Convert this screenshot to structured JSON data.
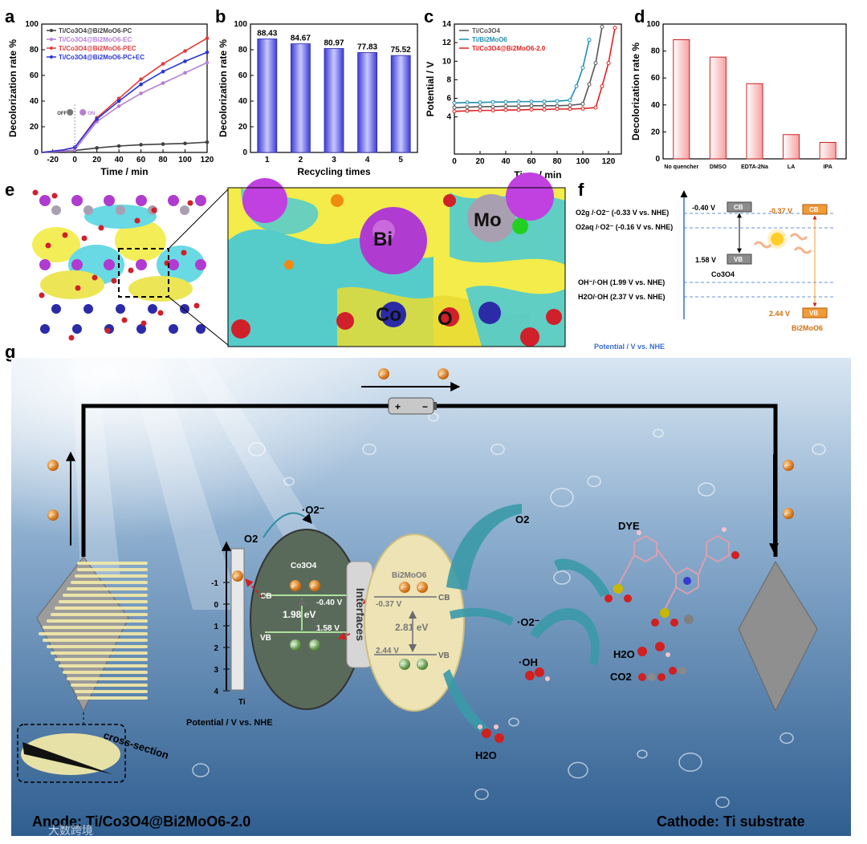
{
  "panels": {
    "a": "a",
    "b": "b",
    "c": "c",
    "d": "d",
    "e": "e",
    "f": "f",
    "g": "g"
  },
  "chart_data": [
    {
      "id": "a",
      "type": "line",
      "xlabel": "Time / min",
      "ylabel": "Decolorization rate %",
      "xlim": [
        -30,
        120
      ],
      "ylim": [
        0,
        100
      ],
      "xticks": [
        -20,
        0,
        20,
        40,
        60,
        80,
        100,
        120
      ],
      "xtick_labels": [
        "-20",
        "0",
        "20",
        "40",
        "60",
        "80",
        "100",
        "120"
      ],
      "yticks": [
        0,
        20,
        40,
        60,
        80,
        100
      ],
      "legend_position": "top-left",
      "x": [
        -30,
        -20,
        -10,
        0,
        20,
        40,
        60,
        80,
        100,
        120
      ],
      "series": [
        {
          "name": "Ti/Co3O4@Bi2MoO6-PC",
          "color": "#404040",
          "values": [
            0,
            0.5,
            1,
            1.5,
            3.5,
            5,
            6,
            6.5,
            7,
            8
          ]
        },
        {
          "name": "Ti/Co3O4@Bi2MoO6-EC",
          "color": "#b57fd6",
          "values": [
            0,
            0.5,
            1,
            2,
            24,
            36,
            46,
            54,
            62,
            70
          ]
        },
        {
          "name": "Ti/Co3O4@Bi2MoO6-PEC",
          "color": "#e23b3b",
          "values": [
            0,
            1,
            2,
            4,
            27,
            42,
            57,
            69,
            79,
            89
          ]
        },
        {
          "name": "Ti/Co3O4@Bi2MoO6-PC+EC",
          "color": "#2a34d8",
          "values": [
            0,
            1,
            2,
            4,
            26,
            40,
            53,
            63,
            71,
            78
          ]
        }
      ],
      "annotation": {
        "off": "OFF",
        "on": "ON"
      }
    },
    {
      "id": "b",
      "type": "bar",
      "xlabel": "Recycling times",
      "ylabel": "Decolorization rate %",
      "ylim": [
        0,
        100
      ],
      "yticks": [
        0,
        20,
        40,
        60,
        80,
        100
      ],
      "categories": [
        "1",
        "2",
        "3",
        "4",
        "5"
      ],
      "values": [
        88.43,
        84.67,
        80.97,
        77.83,
        75.52
      ],
      "labels": [
        "88.43",
        "84.67",
        "80.97",
        "77.83",
        "75.52"
      ]
    },
    {
      "id": "c",
      "type": "line",
      "xlabel": "Time / min",
      "ylabel": "Potential / V",
      "xlim": [
        0,
        130
      ],
      "ylim": [
        0,
        14
      ],
      "xticks": [
        0,
        20,
        40,
        60,
        80,
        100,
        120
      ],
      "yticks": [
        4,
        6,
        8,
        10,
        12,
        14
      ],
      "legend_position": "top-left",
      "series": [
        {
          "name": "Ti/Co3O4",
          "color": "#555555",
          "x": [
            0,
            10,
            20,
            30,
            40,
            50,
            60,
            70,
            80,
            90,
            100,
            105,
            110,
            115
          ],
          "values": [
            5.0,
            5.05,
            5.1,
            5.1,
            5.15,
            5.15,
            5.2,
            5.2,
            5.2,
            5.25,
            5.4,
            7.5,
            9.8,
            13.7
          ]
        },
        {
          "name": "Ti/Bi2MoO6",
          "color": "#1f8fb0",
          "x": [
            0,
            10,
            20,
            30,
            40,
            50,
            60,
            70,
            80,
            90,
            95,
            100,
            105
          ],
          "values": [
            5.5,
            5.55,
            5.55,
            5.6,
            5.6,
            5.65,
            5.65,
            5.65,
            5.7,
            5.8,
            7.3,
            9.3,
            12.3
          ]
        },
        {
          "name": "Ti/Co3O4@Bi2MoO6-2.0",
          "color": "#e02020",
          "x": [
            0,
            10,
            20,
            30,
            40,
            50,
            60,
            70,
            80,
            90,
            100,
            110,
            115,
            120,
            125
          ],
          "values": [
            4.6,
            4.65,
            4.7,
            4.7,
            4.75,
            4.75,
            4.8,
            4.8,
            4.85,
            4.85,
            4.9,
            5.0,
            7.3,
            9.8,
            13.6
          ]
        }
      ]
    },
    {
      "id": "d",
      "type": "bar",
      "ylabel": "Decolorization rate %",
      "ylim": [
        0,
        100
      ],
      "yticks": [
        0,
        20,
        40,
        60,
        80,
        100
      ],
      "categories": [
        "No quencher",
        "DMSO",
        "EDTA-2Na",
        "LA",
        "IPA"
      ],
      "values": [
        88.4,
        75.5,
        55.8,
        18.0,
        12.2
      ]
    }
  ],
  "panel_e": {
    "bi": "Bi",
    "mo": "Mo",
    "co": "Co",
    "o": "O"
  },
  "panel_f": {
    "axis_label": "Potential / V vs. NHE",
    "co_cb": "-0.40 V",
    "co_vb": "1.58 V",
    "bi_cb": "-0.37 V",
    "bi_vb": "2.44 V",
    "cb": "CB",
    "vb": "VB",
    "co_name": "Co3O4",
    "bi_name": "Bi2MoO6",
    "levels": [
      "O2g /·O2⁻  (-0.33 V vs. NHE)",
      "O2aq /·O2⁻ (-0.16 V vs. NHE)",
      "OH⁻/·OH  (1.99 V vs. NHE)",
      "H2O/·OH  (2.37 V vs. NHE)"
    ]
  },
  "panel_g": {
    "electron": "e⁻",
    "hole": "h⁺",
    "plus": "+",
    "minus": "−",
    "axis_label": "Potential / V vs. NHE",
    "ticks": [
      "-1",
      "0",
      "1",
      "2",
      "3",
      "4"
    ],
    "ti": "Ti",
    "co_name": "Co3O4",
    "bi_name": "Bi2MoO6",
    "co_gap": "1.98 eV",
    "bi_gap": "2.81 eV",
    "co_cb_v": "-0.40 V",
    "co_vb_v": "1.58 V",
    "bi_cb_v": "-0.37 V",
    "bi_vb_v": "2.44 V",
    "cb": "CB",
    "vb": "VB",
    "interfaces": "Interfaces",
    "o2": "O2",
    "o2_radical": "·O2⁻",
    "oh_radical": "·OH",
    "h2o": "H2O",
    "co2": "CO2",
    "dye": "DYE",
    "cross_section": "cross-section",
    "anode": "Anode: Ti/Co3O4@Bi2MoO6-2.0",
    "cathode": "Cathode: Ti substrate",
    "watermark": "大数跨境"
  }
}
